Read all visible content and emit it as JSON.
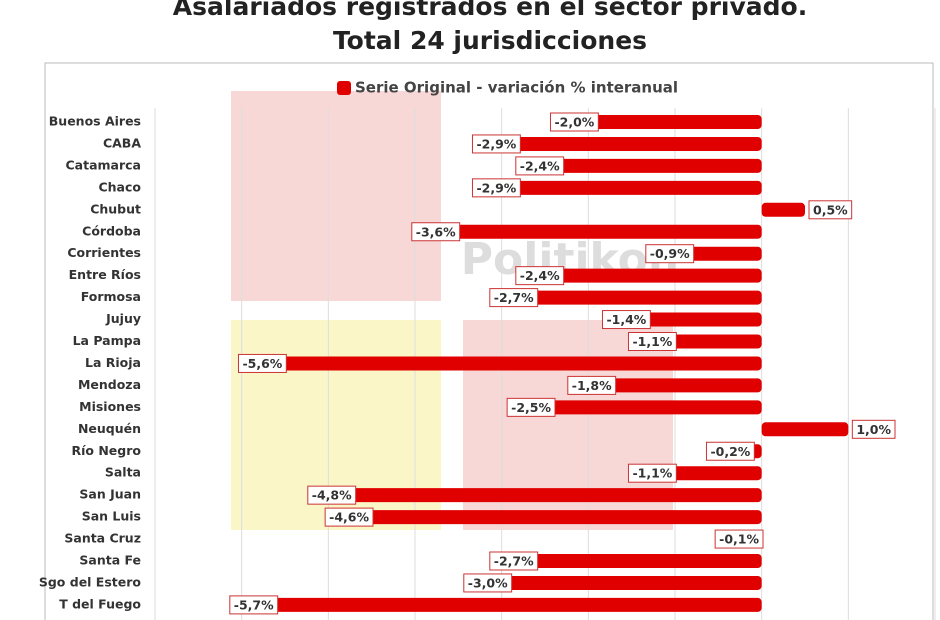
{
  "chart_data": {
    "type": "hbar",
    "title": "Asalariados registrados en el sector privado.",
    "subtitle": "Total 24 jurisdicciones",
    "watermark": "Politikon",
    "categories": [
      "Buenos Aires",
      "CABA",
      "Catamarca",
      "Chaco",
      "Chubut",
      "Córdoba",
      "Corrientes",
      "Entre Ríos",
      "Formosa",
      "Jujuy",
      "La Pampa",
      "La Rioja",
      "Mendoza",
      "Misiones",
      "Neuquén",
      "Río Negro",
      "Salta",
      "San Juan",
      "San Luis",
      "Santa Cruz",
      "Santa Fe",
      "Sgo del Estero",
      "T del Fuego"
    ],
    "series": [
      {
        "name": "Serie Original - variación % interanual",
        "color": "#e00000",
        "values": [
          -2.0,
          -2.9,
          -2.4,
          -2.9,
          0.5,
          -3.6,
          -0.9,
          -2.4,
          -2.7,
          -1.4,
          -1.1,
          -5.6,
          -1.8,
          -2.5,
          1.0,
          -0.2,
          -1.1,
          -4.8,
          -4.6,
          -0.1,
          -2.7,
          -3.0,
          -5.7
        ],
        "value_labels": [
          "-2,0%",
          "-2,9%",
          "-2,4%",
          "-2,9%",
          "0,5%",
          "-3,6%",
          "-0,9%",
          "-2,4%",
          "-2,7%",
          "-1,4%",
          "-1,1%",
          "-5,6%",
          "-1,8%",
          "-2,5%",
          "1,0%",
          "-0,2%",
          "-1,1%",
          "-4,8%",
          "-4,6%",
          "-0,1%",
          "-2,7%",
          "-3,0%",
          "-5,7%"
        ]
      }
    ],
    "xlim": [
      -7,
      2
    ],
    "xticks": [
      -7,
      -6,
      -5,
      -4,
      -3,
      -2,
      -1,
      0,
      1,
      2
    ],
    "grid": true
  }
}
